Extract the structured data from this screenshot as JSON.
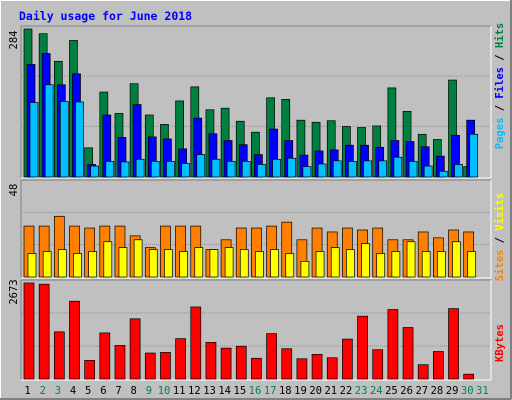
{
  "chart_data": [
    {
      "type": "bar",
      "title": "Daily usage for June 2018",
      "panel": "hits-files-pages",
      "ymax": 284,
      "categories": [
        "1",
        "2",
        "3",
        "4",
        "5",
        "6",
        "7",
        "8",
        "9",
        "10",
        "11",
        "12",
        "13",
        "14",
        "15",
        "16",
        "17",
        "18",
        "19",
        "20",
        "21",
        "22",
        "23",
        "24",
        "25",
        "26",
        "27",
        "28",
        "29",
        "30",
        "31"
      ],
      "weekend_days": [
        "2",
        "3",
        "9",
        "10",
        "16",
        "17",
        "23",
        "24",
        "30",
        "31"
      ],
      "ylabels": [
        "Pages",
        "Files",
        "Hits"
      ],
      "series": [
        {
          "name": "Hits",
          "color": "#008040",
          "values": [
            284,
            275,
            222,
            262,
            56,
            163,
            122,
            179,
            119,
            101,
            146,
            173,
            129,
            132,
            107,
            86,
            152,
            149,
            109,
            105,
            108,
            97,
            95,
            98,
            171,
            126,
            82,
            72,
            186,
            20,
            0
          ]
        },
        {
          "name": "Files",
          "color": "#0000ff",
          "values": [
            216,
            237,
            177,
            198,
            24,
            119,
            76,
            139,
            77,
            73,
            54,
            113,
            83,
            70,
            62,
            43,
            92,
            70,
            42,
            50,
            52,
            61,
            61,
            57,
            70,
            68,
            58,
            40,
            80,
            109,
            0
          ]
        },
        {
          "name": "Pages",
          "color": "#00c0ff",
          "values": [
            143,
            177,
            145,
            144,
            21,
            30,
            29,
            34,
            30,
            30,
            26,
            43,
            34,
            30,
            30,
            24,
            34,
            36,
            20,
            25,
            31,
            30,
            31,
            31,
            38,
            30,
            21,
            11,
            24,
            82,
            0
          ]
        }
      ]
    },
    {
      "type": "bar",
      "panel": "visits-sites",
      "ymax": 48,
      "categories": [
        "1",
        "2",
        "3",
        "4",
        "5",
        "6",
        "7",
        "8",
        "9",
        "10",
        "11",
        "12",
        "13",
        "14",
        "15",
        "16",
        "17",
        "18",
        "19",
        "20",
        "21",
        "22",
        "23",
        "24",
        "25",
        "26",
        "27",
        "28",
        "29",
        "30",
        "31"
      ],
      "ylabels": [
        "Sites",
        "Visits"
      ],
      "series": [
        {
          "name": "Visits",
          "color": "#ffff00",
          "values": [
            12,
            13,
            14,
            12,
            13,
            18,
            15,
            19,
            14,
            14,
            13,
            15,
            14,
            15,
            14,
            13,
            14,
            12,
            8,
            13,
            15,
            14,
            17,
            12,
            13,
            18,
            13,
            13,
            18,
            13,
            0
          ]
        },
        {
          "name": "Sites",
          "color": "#ff8000",
          "values": [
            26,
            26,
            31,
            26,
            25,
            26,
            26,
            21,
            15,
            26,
            26,
            26,
            14,
            19,
            25,
            25,
            26,
            28,
            19,
            25,
            23,
            25,
            24,
            25,
            19,
            19,
            23,
            20,
            24,
            23,
            0
          ]
        }
      ]
    },
    {
      "type": "bar",
      "panel": "kbytes",
      "ymax": 2673,
      "categories": [
        "1",
        "2",
        "3",
        "4",
        "5",
        "6",
        "7",
        "8",
        "9",
        "10",
        "11",
        "12",
        "13",
        "14",
        "15",
        "16",
        "17",
        "18",
        "19",
        "20",
        "21",
        "22",
        "23",
        "24",
        "25",
        "26",
        "27",
        "28",
        "29",
        "30",
        "31"
      ],
      "ylabels": [
        "KBytes"
      ],
      "series": [
        {
          "name": "KBytes",
          "color": "#ff0000",
          "values": [
            2673,
            2640,
            1313,
            2166,
            519,
            1283,
            934,
            1676,
            723,
            740,
            1123,
            2006,
            1020,
            859,
            913,
            577,
            1263,
            843,
            563,
            686,
            592,
            1111,
            1749,
            815,
            1935,
            1434,
            398,
            766,
            1960,
            134,
            0
          ]
        }
      ]
    }
  ]
}
